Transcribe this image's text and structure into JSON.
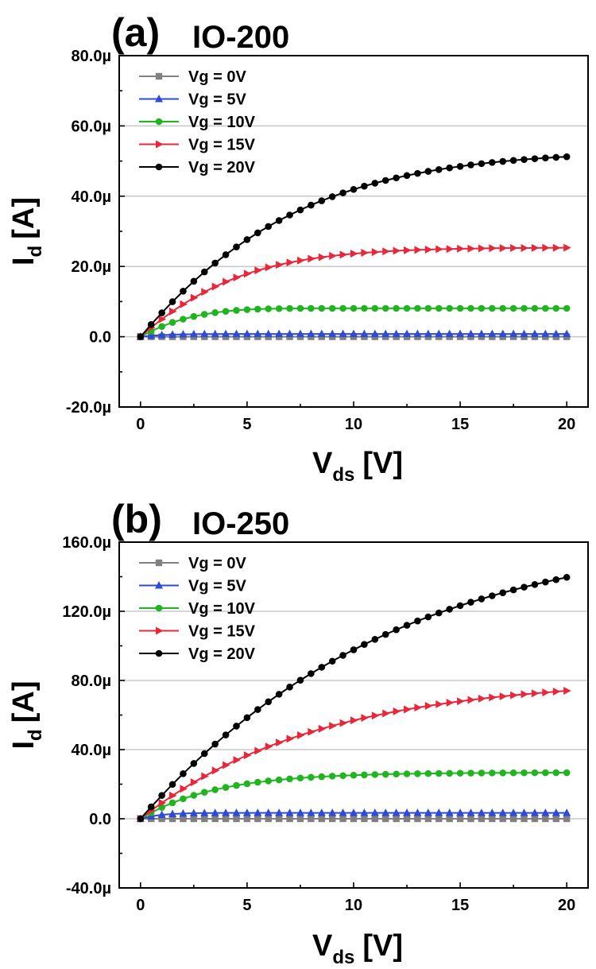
{
  "chart_data": [
    {
      "type": "line",
      "panel_label": "(a)",
      "title": "IO-200",
      "xlabel": {
        "main": "V",
        "sub": "ds",
        "unit": "[V]"
      },
      "ylabel": {
        "main": "I",
        "sub": "d",
        "unit": "[A]"
      },
      "xlim": [
        -1,
        21
      ],
      "ylim": [
        -20,
        80
      ],
      "x_ticks": [
        0,
        5,
        10,
        15,
        20
      ],
      "y_ticks": [
        -20,
        0,
        20,
        40,
        60,
        80
      ],
      "y_tick_labels": [
        "-20.0µ",
        "0.0",
        "20.0µ",
        "40.0µ",
        "60.0µ",
        "80.0µ"
      ],
      "x_tick_labels": [
        "0",
        "5",
        "10",
        "15",
        "20"
      ],
      "grid": true,
      "legend_position": "top-left",
      "x_units": "V",
      "y_units": "µA",
      "series": [
        {
          "name": "Vg = 0V",
          "color": "#808080",
          "marker": "square",
          "x_start": 0,
          "x_step": 0.5,
          "values": [
            0,
            0,
            0,
            0,
            0,
            0,
            0,
            0,
            0,
            0,
            0,
            0,
            0,
            0,
            0,
            0,
            0,
            0,
            0,
            0,
            0,
            0,
            0,
            0,
            0,
            0,
            0,
            0,
            0,
            0,
            0,
            0,
            0,
            0,
            0,
            0,
            0,
            0,
            0,
            0,
            0
          ]
        },
        {
          "name": "Vg = 5V",
          "color": "#2e4bd6",
          "marker": "triangle",
          "x_start": 0,
          "x_step": 0.5,
          "values": [
            0,
            0.29,
            0.48,
            0.6,
            0.68,
            0.72,
            0.75,
            0.77,
            0.78,
            0.79,
            0.79,
            0.79,
            0.8,
            0.8,
            0.8,
            0.8,
            0.8,
            0.8,
            0.8,
            0.8,
            0.8,
            0.8,
            0.8,
            0.8,
            0.8,
            0.8,
            0.8,
            0.8,
            0.8,
            0.8,
            0.8,
            0.8,
            0.8,
            0.8,
            0.8,
            0.8,
            0.8,
            0.8,
            0.8,
            0.8,
            0.8
          ]
        },
        {
          "name": "Vg = 10V",
          "color": "#1fb51f",
          "marker": "circle",
          "x_start": 0,
          "x_step": 0.5,
          "values": [
            0,
            1.58,
            2.93,
            4.07,
            5.0,
            5.77,
            6.38,
            6.86,
            7.23,
            7.51,
            7.71,
            7.85,
            7.94,
            8.0,
            8.04,
            8.06,
            8.07,
            8.08,
            8.08,
            8.08,
            8.08,
            8.08,
            8.08,
            8.08,
            8.08,
            8.08,
            8.08,
            8.08,
            8.08,
            8.08,
            8.08,
            8.08,
            8.08,
            8.08,
            8.08,
            8.08,
            8.08,
            8.08,
            8.08,
            8.08,
            8.08
          ]
        },
        {
          "name": "Vg = 15V",
          "color": "#e8273b",
          "marker": "triangle-right",
          "x_start": 0,
          "x_step": 0.5,
          "values": [
            0,
            2.6,
            5.0,
            7.21,
            9.24,
            11.09,
            12.76,
            14.27,
            15.63,
            16.84,
            17.92,
            18.88,
            19.73,
            20.47,
            21.12,
            21.69,
            22.19,
            22.63,
            23.01,
            23.34,
            23.63,
            23.88,
            24.1,
            24.29,
            24.45,
            24.59,
            24.71,
            24.81,
            24.9,
            24.97,
            25.04,
            25.09,
            25.14,
            25.18,
            25.21,
            25.24,
            25.26,
            25.28,
            25.3,
            25.31,
            25.32
          ]
        },
        {
          "name": "Vg = 20V",
          "color": "#000000",
          "marker": "circle",
          "x_start": 0,
          "x_step": 0.5,
          "values": [
            0,
            3.48,
            6.8,
            9.96,
            12.95,
            15.78,
            18.45,
            20.97,
            23.33,
            25.55,
            27.63,
            29.57,
            31.38,
            33.07,
            34.64,
            36.1,
            37.45,
            38.7,
            39.86,
            40.94,
            41.93,
            42.85,
            43.7,
            44.48,
            45.21,
            45.87,
            46.49,
            47.06,
            47.58,
            48.05,
            48.49,
            48.9,
            49.26,
            49.6,
            49.9,
            50.18,
            50.44,
            50.67,
            50.88,
            51.06,
            51.23
          ]
        }
      ]
    },
    {
      "type": "line",
      "panel_label": "(b)",
      "title": "IO-250",
      "xlabel": {
        "main": "V",
        "sub": "ds",
        "unit": "[V]"
      },
      "ylabel": {
        "main": "I",
        "sub": "d",
        "unit": "[A]"
      },
      "xlim": [
        -1,
        21
      ],
      "ylim": [
        -40,
        160
      ],
      "x_ticks": [
        0,
        5,
        10,
        15,
        20
      ],
      "y_ticks": [
        -40,
        0,
        40,
        80,
        120,
        160
      ],
      "y_tick_labels": [
        "-40.0µ",
        "0.0",
        "40.0µ",
        "80.0µ",
        "120.0µ",
        "160.0µ"
      ],
      "x_tick_labels": [
        "0",
        "5",
        "10",
        "15",
        "20"
      ],
      "grid": true,
      "legend_position": "top-left",
      "x_units": "V",
      "y_units": "µA",
      "series": [
        {
          "name": "Vg = 0V",
          "color": "#808080",
          "marker": "square",
          "x_start": 0,
          "x_step": 0.5,
          "values": [
            0,
            0,
            0,
            0,
            0,
            0,
            0,
            0,
            0,
            0,
            0,
            0,
            0,
            0,
            0,
            0,
            0,
            0,
            0,
            0,
            0,
            0,
            0,
            0,
            0,
            0,
            0,
            0,
            0,
            0,
            0,
            0,
            0,
            0,
            0,
            0,
            0,
            0,
            0,
            0,
            0
          ]
        },
        {
          "name": "Vg = 5V",
          "color": "#2e4bd6",
          "marker": "triangle",
          "x_start": 0,
          "x_step": 0.5,
          "values": [
            0,
            1.45,
            2.3,
            2.78,
            3.05,
            3.2,
            3.29,
            3.34,
            3.37,
            3.38,
            3.39,
            3.39,
            3.4,
            3.4,
            3.4,
            3.4,
            3.4,
            3.4,
            3.4,
            3.4,
            3.4,
            3.4,
            3.4,
            3.4,
            3.4,
            3.4,
            3.4,
            3.4,
            3.4,
            3.4,
            3.4,
            3.4,
            3.4,
            3.4,
            3.4,
            3.4,
            3.4,
            3.4,
            3.4,
            3.4,
            3.4
          ]
        },
        {
          "name": "Vg = 10V",
          "color": "#1fb51f",
          "marker": "circle",
          "x_start": 0,
          "x_step": 0.5,
          "values": [
            0,
            3.52,
            6.58,
            9.24,
            11.55,
            13.56,
            15.3,
            16.81,
            18.13,
            19.27,
            20.26,
            21.12,
            21.86,
            22.51,
            23.07,
            23.56,
            23.98,
            24.35,
            24.66,
            24.94,
            25.18,
            25.39,
            25.57,
            25.72,
            25.86,
            25.98,
            26.08,
            26.17,
            26.24,
            26.31,
            26.37,
            26.42,
            26.46,
            26.5,
            26.53,
            26.56,
            26.58,
            26.6,
            26.62,
            26.64,
            26.65
          ]
        },
        {
          "name": "Vg = 15V",
          "color": "#e8273b",
          "marker": "triangle-right",
          "x_start": 0,
          "x_step": 0.5,
          "values": [
            0,
            4.73,
            9.19,
            13.39,
            17.35,
            21.08,
            24.59,
            27.9,
            31.02,
            33.96,
            36.72,
            39.32,
            41.77,
            44.08,
            46.26,
            48.31,
            50.24,
            52.05,
            53.76,
            55.37,
            56.89,
            58.32,
            59.66,
            60.93,
            62.12,
            63.24,
            64.3,
            65.29,
            66.23,
            67.11,
            67.94,
            68.72,
            69.46,
            70.15,
            70.8,
            71.42,
            72.0,
            72.54,
            73.06,
            73.54,
            74.0
          ]
        },
        {
          "name": "Vg = 20V",
          "color": "#000000",
          "marker": "circle",
          "x_start": 0,
          "x_step": 0.5,
          "values": [
            0,
            6.87,
            13.5,
            19.89,
            26.05,
            31.99,
            37.7,
            43.2,
            48.49,
            53.58,
            58.47,
            63.17,
            67.68,
            72.01,
            76.16,
            80.15,
            83.97,
            87.64,
            91.15,
            94.52,
            97.74,
            100.83,
            103.78,
            106.61,
            109.32,
            111.91,
            114.39,
            116.76,
            119.03,
            121.2,
            123.28,
            125.26,
            127.16,
            128.97,
            130.71,
            132.37,
            133.96,
            135.48,
            136.93,
            138.32,
            139.65
          ]
        }
      ]
    }
  ]
}
